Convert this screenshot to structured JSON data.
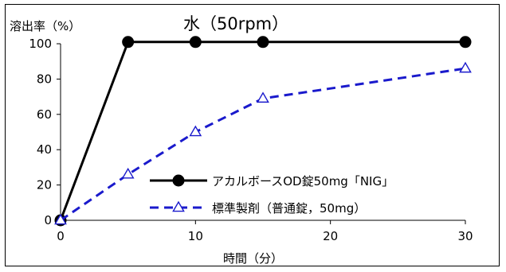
{
  "chart_data": {
    "type": "line",
    "title": "水（50rpm）",
    "ylabel": "溶出率（%）",
    "xlabel": "時間（分）",
    "x": [
      0,
      5,
      10,
      15,
      30
    ],
    "xlim": [
      0,
      30
    ],
    "ylim": [
      0,
      100
    ],
    "xticks": [
      0,
      10,
      20,
      30
    ],
    "yticks": [
      0,
      20,
      40,
      60,
      80,
      100
    ],
    "grid": false,
    "legend_position": "bottom-right",
    "series": [
      {
        "name": "アカルボースOD錠50mg「NIG」",
        "values": [
          0,
          101,
          101,
          101,
          101
        ],
        "color": "#000000",
        "marker": "filled-circle",
        "line_style": "solid"
      },
      {
        "name": "標準製剤（普通錠，50mg）",
        "values": [
          0,
          26,
          50,
          69,
          86
        ],
        "color": "#1a1acc",
        "marker": "open-triangle",
        "line_style": "dashed"
      }
    ]
  }
}
